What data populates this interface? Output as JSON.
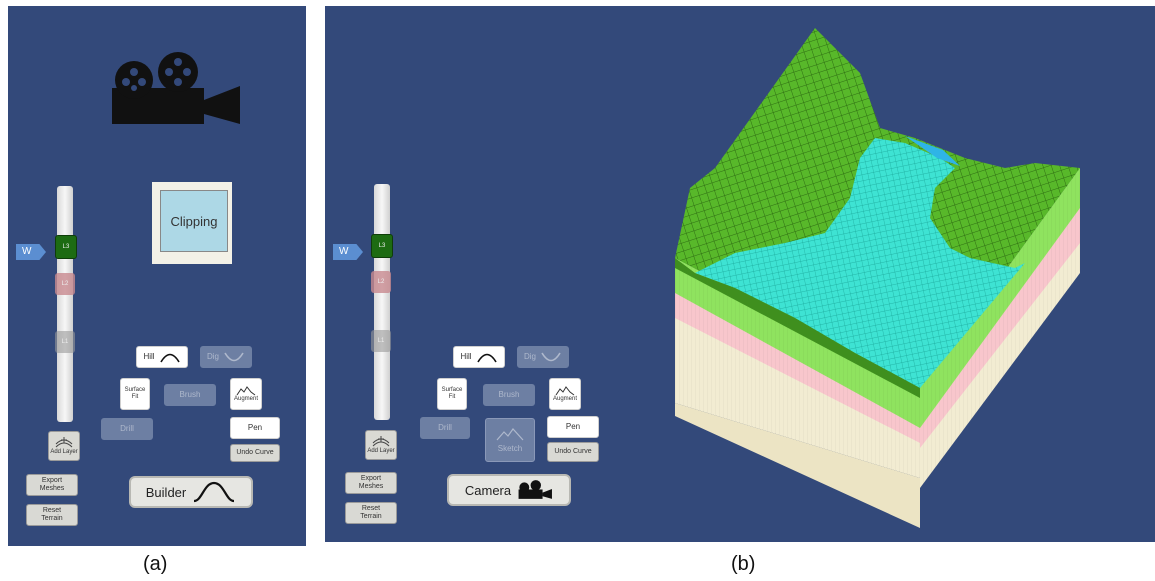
{
  "panel_a": {
    "caption": "(a)",
    "wtag": "W",
    "layer_handles": [
      "L3",
      "L2",
      "L1"
    ],
    "clipping_label": "Clipping",
    "hill_label": "Hill",
    "dig_label": "Dig",
    "surface_fit_label": "Surface Fit",
    "brush_label": "Brush",
    "augment_label": "Augment",
    "drill_label": "Drill",
    "pen_label": "Pen",
    "undo_curve_label": "Undo Curve",
    "add_layer_label": "Add Layer",
    "export_meshes_label": "Export Meshes",
    "reset_terrain_label": "Reset Terrain",
    "mode_button_label": "Builder"
  },
  "panel_b": {
    "caption": "(b)",
    "wtag": "W",
    "layer_handles": [
      "L3",
      "L2",
      "L1"
    ],
    "hill_label": "Hill",
    "dig_label": "Dig",
    "surface_fit_label": "Surface Fit",
    "brush_label": "Brush",
    "augment_label": "Augment",
    "drill_label": "Drill",
    "sketch_label": "Sketch",
    "pen_label": "Pen",
    "undo_curve_label": "Undo Curve",
    "add_layer_label": "Add Layer",
    "export_meshes_label": "Export Meshes",
    "reset_terrain_label": "Reset Terrain",
    "mode_button_label": "Camera"
  },
  "colors": {
    "background": "#33497a",
    "terrain_grass": "#58b82a",
    "terrain_water": "#3ee3d3",
    "layer_green": "#8fe35f",
    "layer_pink": "#f8c6cc",
    "layer_cream": "#f2ecd2"
  }
}
